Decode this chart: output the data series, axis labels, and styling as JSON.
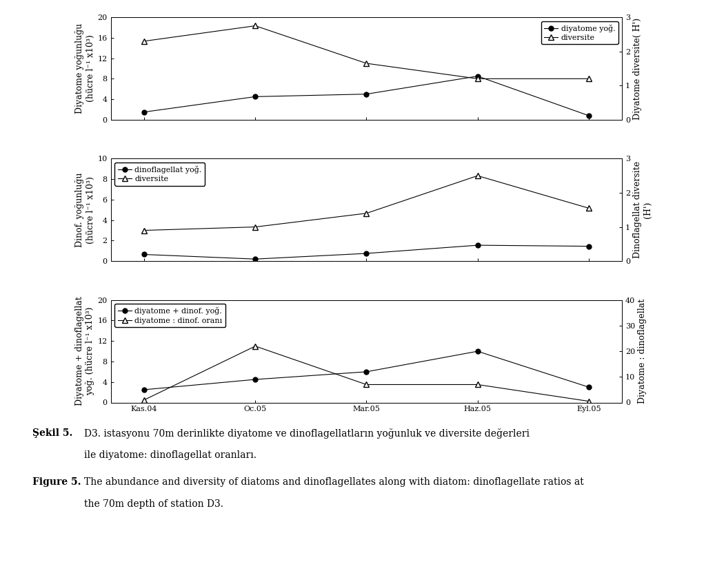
{
  "x_labels": [
    "Kas.04",
    "Oc.05",
    "Mar.05",
    "Haz.05",
    "Eyl.05"
  ],
  "x_positions": [
    0,
    1,
    2,
    3,
    4
  ],
  "panel1": {
    "left_data": [
      1.5,
      4.5,
      5.0,
      8.5,
      0.8
    ],
    "right_data": [
      2.3,
      2.75,
      1.65,
      1.2,
      1.2
    ],
    "left_ylim": [
      0,
      20
    ],
    "left_yticks": [
      0,
      4,
      8,
      12,
      16,
      20
    ],
    "right_ylim": [
      0,
      3
    ],
    "right_yticks": [
      0,
      1,
      2,
      3
    ],
    "legend_left": "diyatome yoğ.",
    "legend_right": "diversite",
    "legend_loc": "upper right"
  },
  "panel2": {
    "left_data": [
      0.65,
      0.2,
      0.75,
      1.55,
      1.45
    ],
    "right_data": [
      0.9,
      1.0,
      1.4,
      2.5,
      1.55
    ],
    "left_ylim": [
      0,
      10
    ],
    "left_yticks": [
      0,
      2,
      4,
      6,
      8,
      10
    ],
    "right_ylim": [
      0,
      3
    ],
    "right_yticks": [
      0,
      1,
      2,
      3
    ],
    "legend_left": "dinoflagellat yoğ.",
    "legend_right": "diversite",
    "legend_loc": "upper left"
  },
  "panel3": {
    "left_data": [
      2.5,
      4.5,
      6.0,
      10.0,
      3.0
    ],
    "right_data": [
      1.0,
      22.0,
      7.0,
      7.0,
      0.5
    ],
    "left_ylim": [
      0,
      20
    ],
    "left_yticks": [
      0,
      4,
      8,
      12,
      16,
      20
    ],
    "right_ylim": [
      0,
      40
    ],
    "right_yticks": [
      0,
      10,
      20,
      30,
      40
    ],
    "legend_left": "diyatome + dinof. yoğ.",
    "legend_right": "diyatome : dinof. oranı",
    "legend_loc": "upper left"
  },
  "font_family": "DejaVu Serif",
  "font_size": 9,
  "tick_font_size": 8,
  "legend_font_size": 8,
  "bg_color": "#ffffff"
}
